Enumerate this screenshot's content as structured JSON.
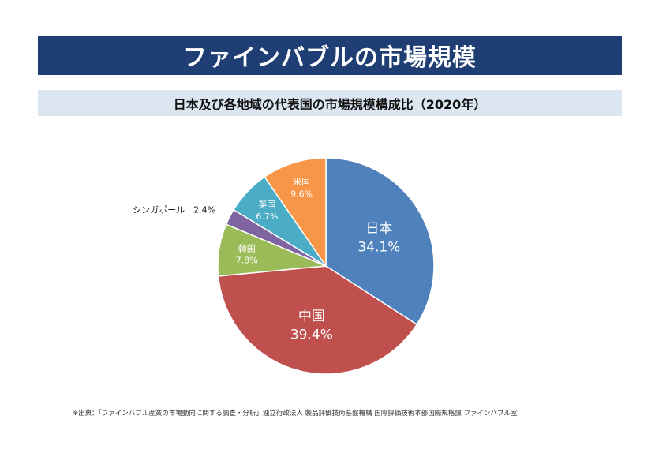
{
  "header": {
    "title": "ファインバブルの市場規模"
  },
  "chart_data": {
    "type": "pie",
    "title": "日本及び各地域の代表国の市場規模構成比（2020年）",
    "slices": [
      {
        "label": "日本",
        "value": 34.1,
        "value_text": "34.1%",
        "color": "#4f81bd"
      },
      {
        "label": "中国",
        "value": 39.4,
        "value_text": "39.4%",
        "color": "#c0504d"
      },
      {
        "label": "韓国",
        "value": 7.8,
        "value_text": "7.8%",
        "color": "#9bbb59"
      },
      {
        "label": "シンガポール",
        "value": 2.4,
        "value_text": "2.4%",
        "color": "#8064a2"
      },
      {
        "label": "英国",
        "value": 6.7,
        "value_text": "6.7%",
        "color": "#4bacc6"
      },
      {
        "label": "米国",
        "value": 9.6,
        "value_text": "9.6%",
        "color": "#f79646"
      }
    ],
    "start_at": "top",
    "direction": "clockwise",
    "label_text_color": "#ffffff",
    "outside_label_color": "#222222"
  },
  "footer": {
    "source": "※出典：「ファインバブル産業の市場動向に関する調査・分析」独立行政法人 製品評価技術基盤機構 国際評価技術本部国際規格課 ファインバブル室"
  }
}
